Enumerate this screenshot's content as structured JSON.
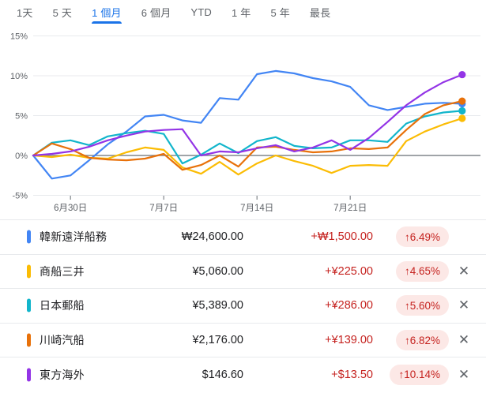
{
  "tabbar": {
    "selected_index": 2,
    "tabs": [
      {
        "label": "1天"
      },
      {
        "label": "5 天"
      },
      {
        "label": "1 個月"
      },
      {
        "label": "6 個月"
      },
      {
        "label": "YTD"
      },
      {
        "label": "1 年"
      },
      {
        "label": "5 年"
      },
      {
        "label": "最長"
      }
    ]
  },
  "chart_data": {
    "type": "line",
    "unit": "%",
    "ylim": [
      -5,
      15
    ],
    "y_ticks": [
      {
        "label": "15%",
        "value": 15
      },
      {
        "label": "10%",
        "value": 10
      },
      {
        "label": "5%",
        "value": 5
      },
      {
        "label": "0%",
        "value": 0
      },
      {
        "label": "-5%",
        "value": -5
      }
    ],
    "x_ticks": [
      {
        "label": "6月30日",
        "day": 2
      },
      {
        "label": "7月7日",
        "day": 7
      },
      {
        "label": "7月14日",
        "day": 12
      },
      {
        "label": "7月21日",
        "day": 17
      }
    ],
    "grid": true,
    "legend_position": "none",
    "num_points": 24,
    "series": [
      {
        "name": "韓新遠洋船務",
        "color": "#4285f4",
        "values": [
          0,
          -2.9,
          -2.5,
          -0.6,
          1.4,
          3.0,
          4.9,
          5.1,
          4.4,
          4.1,
          7.2,
          7.0,
          10.2,
          10.6,
          10.3,
          9.7,
          9.3,
          8.6,
          6.3,
          5.7,
          6.1,
          6.5,
          6.6,
          6.49
        ]
      },
      {
        "name": "商船三井",
        "color": "#fbbc04",
        "values": [
          0,
          -0.2,
          0.1,
          -0.3,
          -0.4,
          0.4,
          1.0,
          0.7,
          -1.5,
          -2.3,
          -0.8,
          -2.4,
          -1.0,
          0.0,
          -0.7,
          -1.3,
          -2.2,
          -1.3,
          -1.2,
          -1.3,
          1.8,
          3.0,
          3.9,
          4.65
        ]
      },
      {
        "name": "日本郵船",
        "color": "#12b5cb",
        "values": [
          0,
          1.6,
          1.9,
          1.3,
          2.4,
          2.8,
          3.1,
          2.7,
          -1.0,
          0.1,
          1.5,
          0.3,
          1.8,
          2.3,
          1.2,
          0.9,
          1.0,
          1.9,
          1.9,
          1.7,
          4.0,
          4.9,
          5.4,
          5.6
        ]
      },
      {
        "name": "川崎汽船",
        "color": "#e8710a",
        "values": [
          0,
          1.5,
          0.8,
          -0.3,
          -0.5,
          -0.6,
          -0.4,
          0.2,
          -1.8,
          -1.2,
          0.0,
          -1.4,
          1.0,
          1.1,
          0.7,
          0.4,
          0.5,
          0.9,
          0.8,
          1.0,
          3.2,
          5.2,
          6.3,
          6.82
        ]
      },
      {
        "name": "東方海外",
        "color": "#9334e6",
        "values": [
          0,
          0.2,
          0.5,
          1.1,
          1.9,
          2.5,
          3.0,
          3.2,
          3.3,
          0.0,
          0.5,
          0.4,
          0.9,
          1.3,
          0.5,
          1.0,
          1.9,
          0.7,
          2.2,
          4.2,
          6.3,
          7.9,
          9.2,
          10.14
        ]
      }
    ]
  },
  "watchlist": {
    "rows": [
      {
        "name": "韓新遠洋船務",
        "color": "#4285f4",
        "price": "₩24,600.00",
        "change": "+₩1,500.00",
        "badge": "↑6.49%",
        "closable": false
      },
      {
        "name": "商船三井",
        "color": "#fbbc04",
        "price": "¥5,060.00",
        "change": "+¥225.00",
        "badge": "↑4.65%",
        "closable": true
      },
      {
        "name": "日本郵船",
        "color": "#12b5cb",
        "price": "¥5,389.00",
        "change": "+¥286.00",
        "badge": "↑5.60%",
        "closable": true
      },
      {
        "name": "川崎汽船",
        "color": "#e8710a",
        "price": "¥2,176.00",
        "change": "+¥139.00",
        "badge": "↑6.82%",
        "closable": true
      },
      {
        "name": "東方海外",
        "color": "#9334e6",
        "price": "$146.60",
        "change": "+$13.50",
        "badge": "↑10.14%",
        "closable": true
      }
    ],
    "close_glyph": "✕"
  },
  "colors": {
    "accent_blue": "#1a73e8",
    "up_red_text": "#c5221f",
    "up_red_bg": "#fce8e6",
    "axis_text": "#5f6368",
    "grid_light": "#e8eaed",
    "zero_line": "#80868b"
  }
}
